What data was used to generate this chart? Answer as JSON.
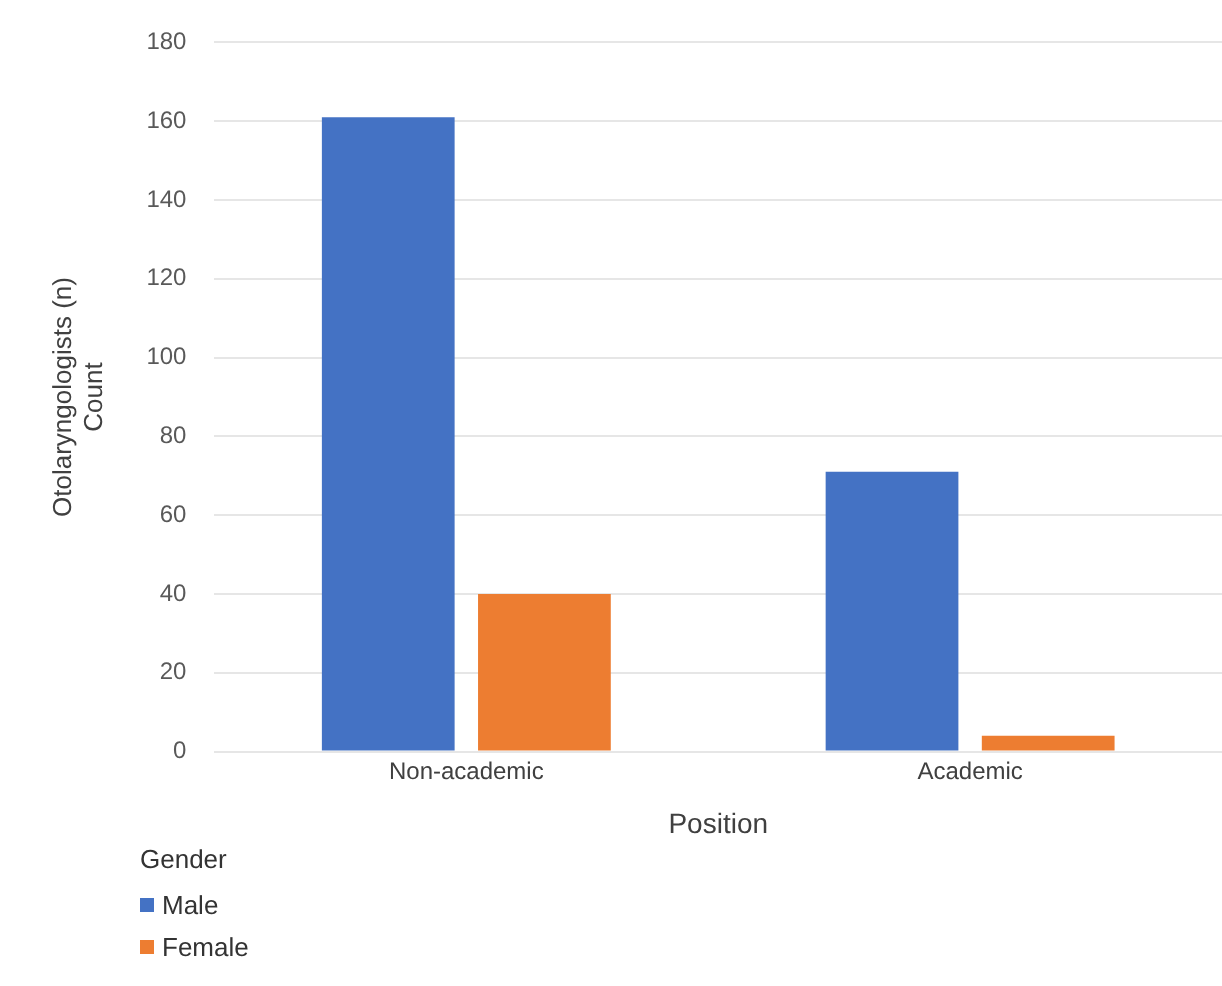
{
  "chart_data": {
    "type": "bar",
    "xlabel": "Position",
    "ylabel": "Otolaryngologists (n)\nCount",
    "legend_title": "Gender",
    "categories": [
      "Non-academic",
      "Academic"
    ],
    "series": [
      {
        "name": "Male",
        "color": "#4472c4",
        "values": [
          161,
          71
        ]
      },
      {
        "name": "Female",
        "color": "#ed7d31",
        "values": [
          40,
          4
        ]
      }
    ],
    "ylim": [
      0,
      180
    ],
    "yticks": [
      0,
      20,
      40,
      60,
      80,
      100,
      120,
      140,
      160,
      180
    ],
    "grid": "y",
    "legend": "bottom left"
  }
}
